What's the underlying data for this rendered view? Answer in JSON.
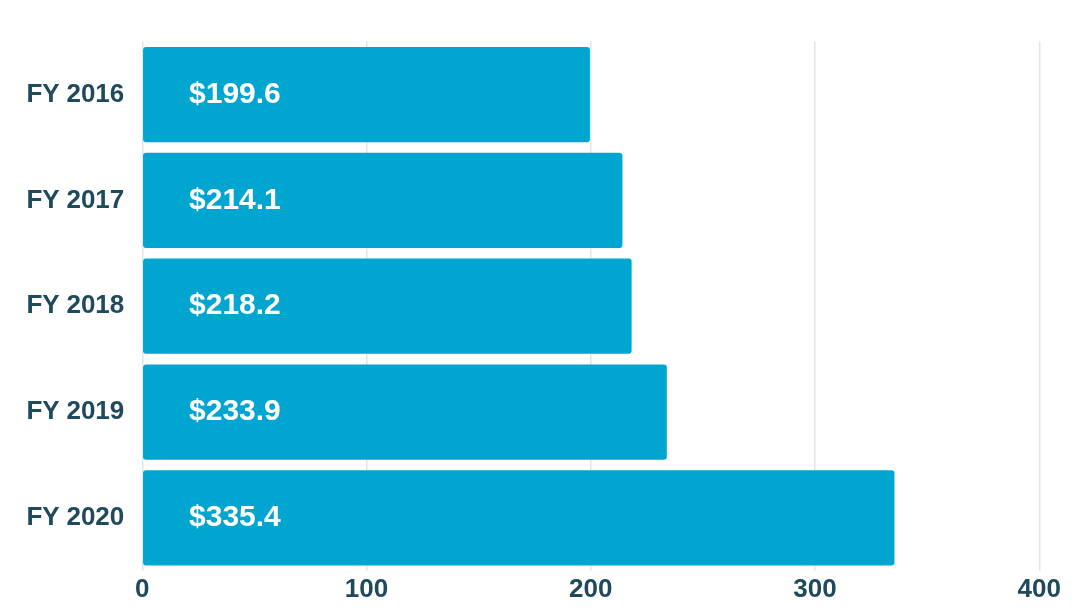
{
  "chart_data": {
    "type": "bar",
    "orientation": "horizontal",
    "categories": [
      "FY 2016",
      "FY 2017",
      "FY 2018",
      "FY 2019",
      "FY 2020"
    ],
    "values": [
      199.6,
      214.1,
      218.2,
      233.9,
      335.4
    ],
    "value_labels": [
      "$199.6",
      "$214.1",
      "$218.2",
      "$233.9",
      "$335.4"
    ],
    "color": "#00a5d0",
    "xlim": [
      0,
      400
    ],
    "xticks": [
      0,
      100,
      200,
      300,
      400
    ],
    "grid": "x",
    "legend": false
  }
}
